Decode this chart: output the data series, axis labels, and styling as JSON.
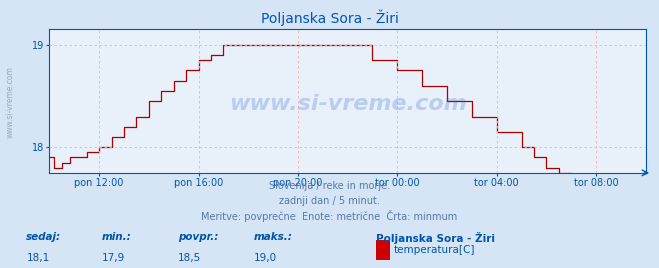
{
  "title": "Poljanska Sora - Žiri",
  "bg_color": "#d5e5f5",
  "plot_bg_color": "#e8f0fa",
  "grid_color": "#ffaaaa",
  "line_color": "#aa0000",
  "axis_color": "#0055bb",
  "title_color": "#0055bb",
  "text_color": "#5577aa",
  "label_color": "#0055aa",
  "ylim": [
    17.75,
    19.15
  ],
  "yticks": [
    18,
    19
  ],
  "xlim": [
    0,
    288
  ],
  "xtick_positions": [
    24,
    72,
    120,
    168,
    216,
    264
  ],
  "xtick_labels": [
    "pon 12:00",
    "pon 16:00",
    "pon 20:00",
    "tor 00:00",
    "tor 04:00",
    "tor 08:00"
  ],
  "footer_line1": "Slovenija / reke in morje.",
  "footer_line2": "zadnji dan / 5 minut.",
  "footer_line3": "Meritve: povprečne  Enote: metrične  Črta: minmum",
  "stat_labels": [
    "sedaj:",
    "min.:",
    "povpr.:",
    "maks.:"
  ],
  "stat_values": [
    "18,1",
    "17,9",
    "18,5",
    "19,0"
  ],
  "legend_name": "Poljanska Sora - Žiri",
  "legend_label": "temperatura[C]",
  "legend_color": "#cc0000",
  "watermark": "www.si-vreme.com"
}
